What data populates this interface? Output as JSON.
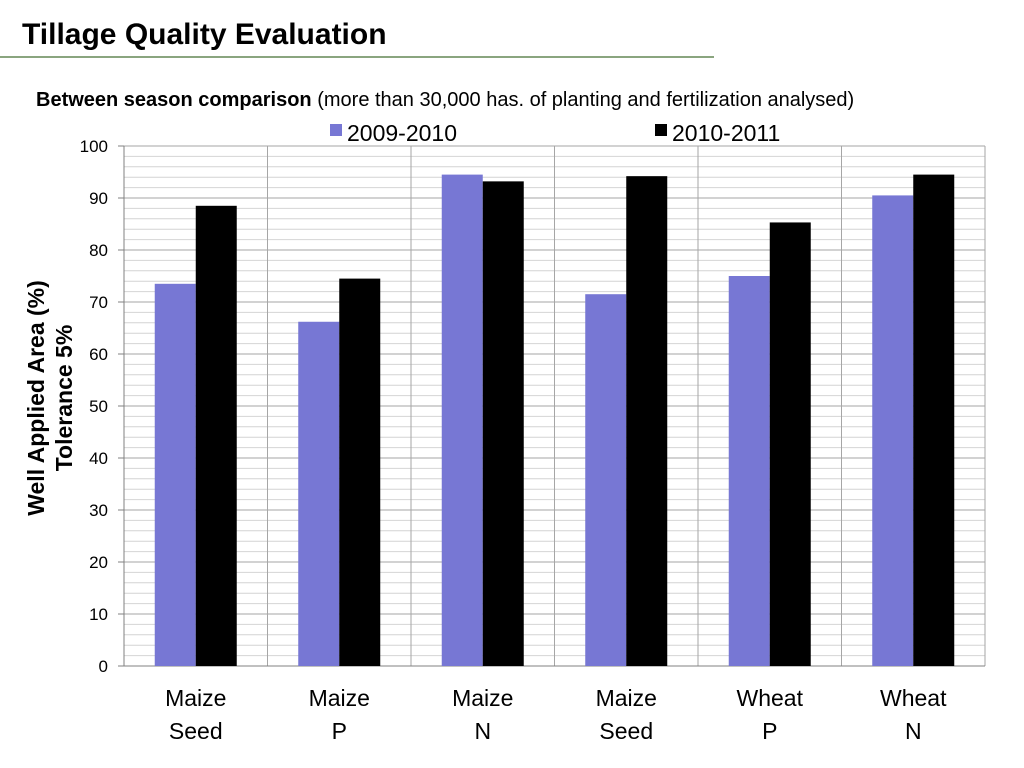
{
  "slide": {
    "title": "Tillage Quality Evaluation",
    "subtitle_bold": "Between season comparison",
    "subtitle_rest": " (more than 30,000 has. of planting and fertilization analysed)"
  },
  "chart_data": {
    "type": "bar",
    "categories": [
      [
        "Maize",
        "Seed"
      ],
      [
        "Maize",
        "P"
      ],
      [
        "Maize",
        "N"
      ],
      [
        "Maize",
        "Seed"
      ],
      [
        "Wheat",
        "P"
      ],
      [
        "Wheat",
        "N"
      ]
    ],
    "series": [
      {
        "name": "2009-2010",
        "values": [
          73.5,
          66.2,
          94.5,
          71.5,
          75.0,
          90.5
        ],
        "color": "#7777d4"
      },
      {
        "name": "2010-2011",
        "values": [
          88.5,
          74.5,
          93.2,
          94.2,
          85.3,
          94.5
        ],
        "color": "#000000"
      }
    ],
    "ylabel": [
      "Well Applied Area (%)",
      "Tolerance 5%"
    ],
    "ylim": [
      0,
      100
    ],
    "yticks": [
      "0",
      "10",
      "20",
      "30",
      "40",
      "50",
      "60",
      "70",
      "80",
      "90",
      "100"
    ],
    "legend_position": "top",
    "grid": true
  }
}
